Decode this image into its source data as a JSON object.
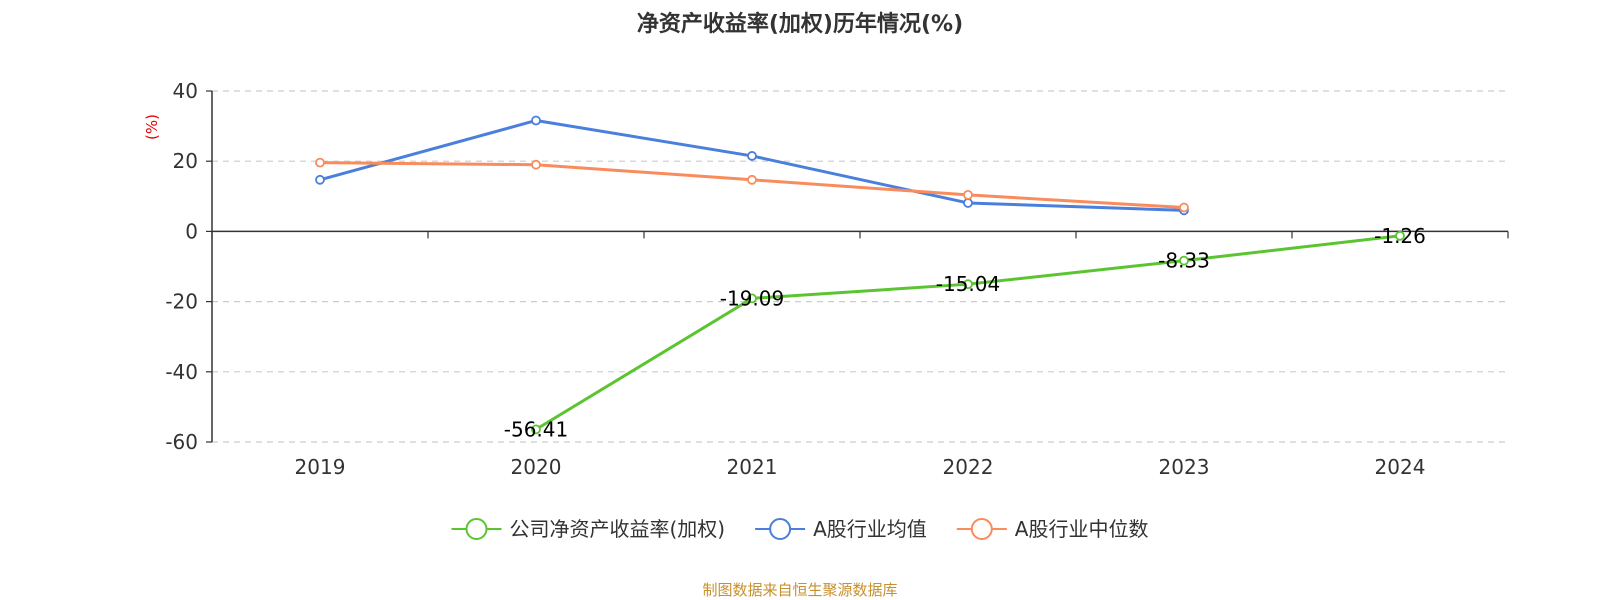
{
  "chart_data": {
    "type": "line",
    "title": "净资产收益率(加权)历年情况(%)",
    "ylabel": "(%)",
    "xlabel": "",
    "categories": [
      "2019",
      "2020",
      "2021",
      "2022",
      "2023",
      "2024"
    ],
    "ylim": [
      -60,
      40
    ],
    "yticks": [
      40,
      20,
      0,
      -20,
      -40,
      -60
    ],
    "grid": true,
    "legend_position": "bottom",
    "series": [
      {
        "name": "公司净资产收益率(加权)",
        "color": "#5bc431",
        "values": [
          null,
          -56.41,
          -19.09,
          -15.04,
          -8.33,
          -1.26
        ],
        "labels": [
          "",
          "-56.41",
          "-19.09",
          "-15.04",
          "-8.33",
          "-1.26"
        ]
      },
      {
        "name": "A股行业均值",
        "color": "#4a7fdc",
        "values": [
          14.7,
          31.6,
          21.5,
          8.1,
          6.0,
          null
        ]
      },
      {
        "name": "A股行业中位数",
        "color": "#f98c5c",
        "values": [
          19.6,
          19.0,
          14.7,
          10.4,
          6.8,
          null
        ]
      }
    ],
    "source": "制图数据来自恒生聚源数据库"
  }
}
